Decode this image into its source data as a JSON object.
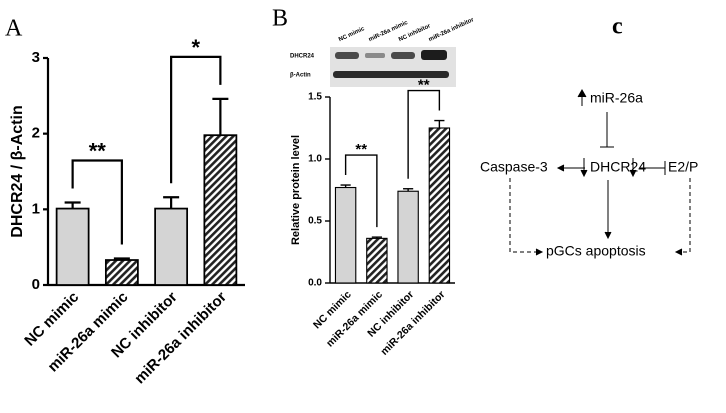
{
  "chart_data": [
    {
      "type": "bar",
      "panel_label": "A",
      "ylabel": "DHCR24 / β-Actin",
      "categories": [
        "NC mimic",
        "miR-26a mimic",
        "NC inhibitor",
        "miR-26a inhibitor"
      ],
      "values": [
        1.01,
        0.33,
        1.01,
        1.98
      ],
      "errors": [
        0.08,
        0.02,
        0.15,
        0.48
      ],
      "fills": [
        "#d4d4d4",
        "hatched",
        "#d4d4d4",
        "hatched"
      ],
      "ylim": [
        0,
        3
      ],
      "yticks": [
        0,
        1,
        2,
        3
      ],
      "annotations": [
        {
          "text": "**",
          "from": 0,
          "to": 1
        },
        {
          "text": "*",
          "from": 2,
          "to": 3
        }
      ]
    },
    {
      "type": "bar",
      "panel_label": "B",
      "ylabel": "Relative protein level",
      "categories": [
        "NC mimic",
        "miR-26a mimic",
        "NC inhibitor",
        "miR-26a inhibitor"
      ],
      "values": [
        0.77,
        0.36,
        0.74,
        1.25
      ],
      "errors": [
        0.02,
        0.01,
        0.02,
        0.06
      ],
      "fills": [
        "#d4d4d4",
        "hatched",
        "#d4d4d4",
        "hatched"
      ],
      "ylim": [
        0,
        1.5
      ],
      "yticks": [
        {
          "value": 0,
          "label": "0.0"
        },
        0.5,
        {
          "value": 1,
          "label": "1.0"
        },
        1.5
      ],
      "annotations": [
        {
          "text": "**",
          "from": 0,
          "to": 1
        },
        {
          "text": "**",
          "from": 2,
          "to": 3
        }
      ],
      "blot": {
        "lanes": [
          "NC mimic",
          "miR-26a mimic",
          "NC inhibitor",
          "miR-26a inhibitor"
        ],
        "rows": [
          "DHCR24",
          "β-Actin"
        ]
      }
    }
  ],
  "diagram": {
    "panel_label": "c",
    "nodes": [
      "miR-26a",
      "DHCR24",
      "Caspase-3",
      "E2/P",
      "pGCs apoptosis"
    ]
  }
}
